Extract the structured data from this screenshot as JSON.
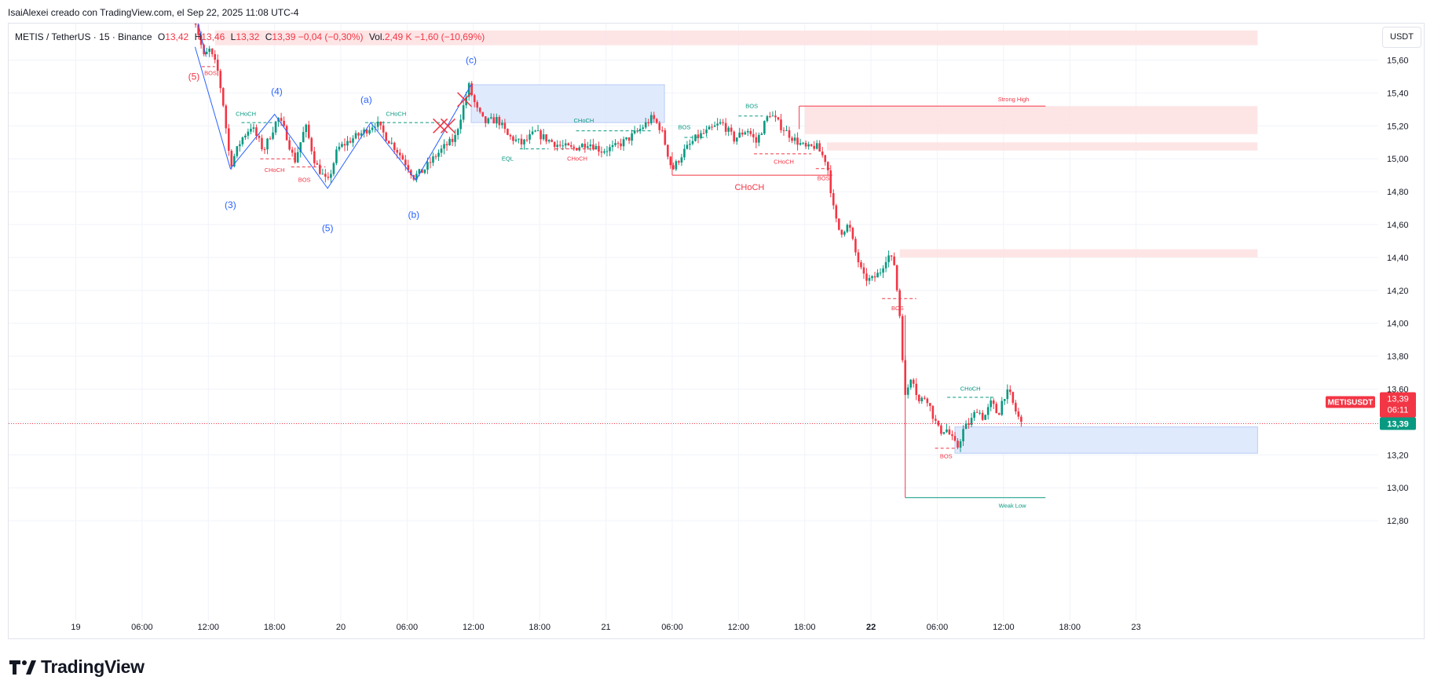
{
  "header": {
    "attribution": "IsaiAlexei creado con TradingView.com, el Sep 22, 2025 11:08 UTC-4"
  },
  "legend": {
    "symbol": "METIS / TetherUS · 15 · Binance",
    "open_label": "O",
    "open": "13,42",
    "high_label": "H",
    "high": "13,46",
    "low_label": "L",
    "low": "13,32",
    "close_label": "C",
    "close": "13,39",
    "change": "−0,04 (−0,30%)",
    "vol_label": "Vol.",
    "vol": "2,49 K",
    "vol_change": "−1,60 (−10,69%)"
  },
  "currency_button": "USDT",
  "footer": {
    "brand": "TradingView"
  },
  "colors": {
    "up": "#089981",
    "down": "#f23645",
    "wave": "#2962ff",
    "zone_red": "#fde0e2",
    "zone_blue": "#dbe6fd"
  },
  "chart_data": {
    "type": "candlestick",
    "title": "METIS / TetherUS · 15 · Binance",
    "ylabel": "USDT",
    "ylim": [
      12.7,
      15.8
    ],
    "y_ticks": [
      15.6,
      15.4,
      15.2,
      15.0,
      14.8,
      14.6,
      14.4,
      14.2,
      14.0,
      13.8,
      13.6,
      13.4,
      13.2,
      13.0,
      12.8
    ],
    "y_tick_labels": [
      "15,60",
      "15,40",
      "15,20",
      "15,00",
      "14,80",
      "14,60",
      "14,40",
      "14,20",
      "14,00",
      "13,80",
      "13,60",
      "13,40",
      "13,20",
      "13,00",
      "12,80"
    ],
    "x_range_hours": [
      -18,
      88
    ],
    "x_ticks": [
      {
        "h": 0,
        "label": "19"
      },
      {
        "h": 6,
        "label": "06:00"
      },
      {
        "h": 12,
        "label": "12:00"
      },
      {
        "h": 18,
        "label": "18:00"
      },
      {
        "h": 24,
        "label": "20"
      },
      {
        "h": 30,
        "label": "06:00"
      },
      {
        "h": 36,
        "label": "12:00"
      },
      {
        "h": 42,
        "label": "18:00"
      },
      {
        "h": 48,
        "label": "21"
      },
      {
        "h": 54,
        "label": "06:00"
      },
      {
        "h": 60,
        "label": "12:00"
      },
      {
        "h": 66,
        "label": "18:00"
      },
      {
        "h": 72,
        "label": "22",
        "bold": true
      },
      {
        "h": 78,
        "label": "06:00"
      },
      {
        "h": 84,
        "label": "12:00"
      },
      {
        "h": 90,
        "label": "18:00"
      },
      {
        "h": 96,
        "label": "23"
      }
    ],
    "price_path": [
      [
        10.6,
        15.9
      ],
      [
        11.6,
        15.62
      ],
      [
        12.1,
        15.66
      ],
      [
        12.8,
        15.55
      ],
      [
        13.3,
        15.36
      ],
      [
        14.0,
        14.96
      ],
      [
        15.0,
        15.12
      ],
      [
        15.9,
        15.2
      ],
      [
        17.0,
        15.05
      ],
      [
        18.3,
        15.25
      ],
      [
        19.0,
        15.16
      ],
      [
        19.8,
        14.98
      ],
      [
        20.8,
        15.2
      ],
      [
        21.7,
        14.97
      ],
      [
        22.8,
        14.85
      ],
      [
        23.7,
        15.06
      ],
      [
        25.0,
        15.12
      ],
      [
        26.0,
        15.16
      ],
      [
        27.2,
        15.22
      ],
      [
        28.0,
        15.14
      ],
      [
        29.0,
        15.06
      ],
      [
        30.0,
        14.96
      ],
      [
        30.6,
        14.89
      ],
      [
        31.5,
        14.93
      ],
      [
        32.6,
        15.02
      ],
      [
        33.5,
        15.08
      ],
      [
        34.3,
        15.12
      ],
      [
        34.9,
        15.27
      ],
      [
        35.6,
        15.44
      ],
      [
        36.3,
        15.3
      ],
      [
        37.0,
        15.22
      ],
      [
        38.2,
        15.24
      ],
      [
        39.1,
        15.14
      ],
      [
        40.4,
        15.09
      ],
      [
        41.6,
        15.16
      ],
      [
        42.6,
        15.12
      ],
      [
        43.8,
        15.08
      ],
      [
        45.0,
        15.06
      ],
      [
        46.4,
        15.1
      ],
      [
        47.6,
        15.05
      ],
      [
        48.8,
        15.07
      ],
      [
        50.0,
        15.12
      ],
      [
        51.1,
        15.18
      ],
      [
        52.2,
        15.25
      ],
      [
        53.0,
        15.18
      ],
      [
        54.0,
        14.93
      ],
      [
        55.0,
        15.04
      ],
      [
        56.2,
        15.13
      ],
      [
        57.3,
        15.17
      ],
      [
        58.5,
        15.22
      ],
      [
        59.6,
        15.12
      ],
      [
        60.8,
        15.18
      ],
      [
        61.6,
        15.1
      ],
      [
        62.8,
        15.28
      ],
      [
        63.8,
        15.2
      ],
      [
        65.0,
        15.12
      ],
      [
        66.2,
        15.06
      ],
      [
        67.0,
        15.08
      ],
      [
        68.0,
        14.98
      ],
      [
        68.7,
        14.65
      ],
      [
        69.2,
        14.55
      ],
      [
        70.0,
        14.6
      ],
      [
        70.5,
        14.45
      ],
      [
        71.3,
        14.28
      ],
      [
        72.0,
        14.26
      ],
      [
        72.8,
        14.31
      ],
      [
        73.5,
        14.42
      ],
      [
        74.1,
        14.36
      ],
      [
        74.6,
        14.05
      ],
      [
        75.1,
        13.55
      ],
      [
        75.7,
        13.7
      ],
      [
        76.3,
        13.52
      ],
      [
        77.0,
        13.56
      ],
      [
        77.6,
        13.44
      ],
      [
        78.2,
        13.34
      ],
      [
        78.8,
        13.36
      ],
      [
        79.3,
        13.3
      ],
      [
        79.8,
        13.24
      ],
      [
        80.4,
        13.36
      ],
      [
        81.0,
        13.4
      ],
      [
        81.6,
        13.48
      ],
      [
        82.2,
        13.42
      ],
      [
        82.9,
        13.52
      ],
      [
        83.5,
        13.44
      ],
      [
        84.0,
        13.56
      ],
      [
        84.5,
        13.58
      ],
      [
        85.0,
        13.48
      ],
      [
        85.6,
        13.39
      ]
    ],
    "wave_lines": [
      [
        [
          10.8,
          15.68
        ],
        [
          14.0,
          14.94
        ],
        [
          18.0,
          15.27
        ],
        [
          22.8,
          14.82
        ],
        [
          26.7,
          15.22
        ],
        [
          30.8,
          14.87
        ],
        [
          35.8,
          15.45
        ]
      ],
      [
        [
          10.8,
          15.9
        ],
        [
          11.8,
          15.62
        ]
      ]
    ],
    "wave_labels": [
      {
        "h": 10.8,
        "y": 15.84,
        "text": "(4)"
      },
      {
        "h": 10.7,
        "y": 15.48,
        "text": "(5)",
        "color": "down"
      },
      {
        "h": 14.0,
        "y": 14.7,
        "text": "(3)"
      },
      {
        "h": 18.2,
        "y": 15.39,
        "text": "(4)"
      },
      {
        "h": 22.8,
        "y": 14.56,
        "text": "(5)"
      },
      {
        "h": 26.3,
        "y": 15.34,
        "text": "(a)"
      },
      {
        "h": 30.6,
        "y": 14.64,
        "text": "(b)"
      },
      {
        "h": 35.8,
        "y": 15.58,
        "text": "(c)"
      }
    ],
    "zones": [
      {
        "h0": 12.6,
        "h1": 107,
        "y0": 15.69,
        "y1": 15.78,
        "color": "red"
      },
      {
        "h0": 35.8,
        "h1": 53.3,
        "y0": 15.22,
        "y1": 15.45,
        "color": "blue"
      },
      {
        "h0": 66.0,
        "h1": 107,
        "y0": 15.15,
        "y1": 15.32,
        "color": "red"
      },
      {
        "h0": 68.0,
        "h1": 107,
        "y0": 15.05,
        "y1": 15.1,
        "color": "red"
      },
      {
        "h0": 74.6,
        "h1": 107,
        "y0": 14.4,
        "y1": 14.45,
        "color": "red"
      },
      {
        "h0": 79.6,
        "h1": 107,
        "y0": 13.21,
        "y1": 13.37,
        "color": "blue"
      }
    ],
    "structure_lines": [
      {
        "h0": 15.0,
        "h1": 17.9,
        "y": 15.22,
        "dash": true,
        "color": "up"
      },
      {
        "h0": 16.7,
        "h1": 19.8,
        "y": 15.0,
        "dash": true,
        "color": "down"
      },
      {
        "h0": 19.5,
        "h1": 22.6,
        "y": 14.95,
        "dash": true,
        "color": "down"
      },
      {
        "h0": 26.2,
        "h1": 33.6,
        "y": 15.22,
        "dash": true,
        "color": "up"
      },
      {
        "h0": 40.2,
        "h1": 42.8,
        "y": 15.06,
        "dash": true,
        "color": "up"
      },
      {
        "h0": 45.3,
        "h1": 52.2,
        "y": 15.17,
        "dash": true,
        "color": "up"
      },
      {
        "h0": 43.4,
        "h1": 47.0,
        "y": 15.06,
        "dash": true,
        "color": "down"
      },
      {
        "h0": 55.1,
        "h1": 57.2,
        "y": 15.13,
        "dash": true,
        "color": "up"
      },
      {
        "h0": 60.0,
        "h1": 62.2,
        "y": 15.26,
        "dash": true,
        "color": "up"
      },
      {
        "h0": 61.4,
        "h1": 66.6,
        "y": 15.03,
        "dash": true,
        "color": "down"
      },
      {
        "h0": 67.0,
        "h1": 68.4,
        "y": 14.94,
        "dash": true,
        "color": "down"
      },
      {
        "h0": 73.0,
        "h1": 76.1,
        "y": 14.15,
        "dash": true,
        "color": "down"
      },
      {
        "h0": 77.8,
        "h1": 79.7,
        "y": 13.24,
        "dash": true,
        "color": "down"
      },
      {
        "h0": 78.9,
        "h1": 83.1,
        "y": 13.55,
        "dash": true,
        "color": "up"
      },
      {
        "h0": 11.4,
        "h1": 12.6,
        "y": 15.56,
        "dash": true,
        "color": "down"
      },
      {
        "h0": 54.0,
        "h1": 68.5,
        "y": 14.9,
        "dash": false,
        "color": "down"
      },
      {
        "h0": 65.5,
        "h1": 87.8,
        "y": 15.32,
        "dash": false,
        "color": "down"
      },
      {
        "h0": 75.1,
        "h1": 87.8,
        "y": 12.94,
        "dash": false,
        "color": "up"
      }
    ],
    "annotations": [
      {
        "h": 15.4,
        "y": 15.26,
        "text": "CHoCH",
        "color": "up"
      },
      {
        "h": 18.0,
        "y": 14.92,
        "text": "CHoCH",
        "color": "down"
      },
      {
        "h": 20.7,
        "y": 14.86,
        "text": "BOS",
        "color": "down"
      },
      {
        "h": 29.0,
        "y": 15.26,
        "text": "CHoCH",
        "color": "up"
      },
      {
        "h": 39.1,
        "y": 14.99,
        "text": "EQL",
        "color": "up"
      },
      {
        "h": 46.0,
        "y": 15.22,
        "text": "CHoCH",
        "color": "up"
      },
      {
        "h": 45.4,
        "y": 14.99,
        "text": "CHoCH",
        "color": "down"
      },
      {
        "h": 55.1,
        "y": 15.18,
        "text": "BOS",
        "color": "up"
      },
      {
        "h": 61.2,
        "y": 15.31,
        "text": "BOS",
        "color": "up"
      },
      {
        "h": 64.1,
        "y": 14.97,
        "text": "CHoCH",
        "color": "down"
      },
      {
        "h": 67.7,
        "y": 14.87,
        "text": "BOS",
        "color": "down"
      },
      {
        "h": 61.0,
        "y": 14.81,
        "text": "CHoCH",
        "color": "down",
        "big": true
      },
      {
        "h": 84.9,
        "y": 15.35,
        "text": "Strong High",
        "color": "down"
      },
      {
        "h": 74.4,
        "y": 14.08,
        "text": "BOS",
        "color": "down"
      },
      {
        "h": 81.0,
        "y": 13.59,
        "text": "CHoCH",
        "color": "up"
      },
      {
        "h": 78.8,
        "y": 13.18,
        "text": "BOS",
        "color": "down"
      },
      {
        "h": 84.8,
        "y": 12.88,
        "text": "Weak Low",
        "color": "up"
      },
      {
        "h": 11.0,
        "y": 15.86,
        "text": "BOS",
        "color": "down"
      },
      {
        "h": 12.2,
        "y": 15.51,
        "text": "BOS",
        "color": "down"
      }
    ],
    "cross_markers": [
      {
        "h": 35.2,
        "y": 15.36
      },
      {
        "h": 33.0,
        "y": 15.2
      },
      {
        "h": 33.7,
        "y": 15.2
      }
    ],
    "last_price": {
      "value": 13.39,
      "label": "13,39",
      "countdown": "06:11",
      "symbol_tag": "METISUSDT"
    },
    "current_line_value": 13.39
  }
}
